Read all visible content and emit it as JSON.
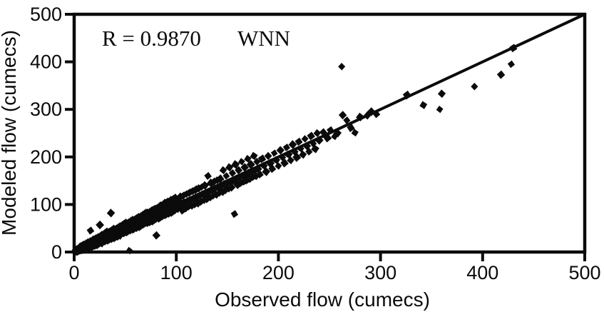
{
  "chart_data": {
    "type": "scatter",
    "title": "",
    "xlabel": "Observed flow (cumecs)",
    "ylabel": "Modeled flow (cumecs)",
    "xlim": [
      0,
      500
    ],
    "ylim": [
      0,
      500
    ],
    "xticks": [
      0,
      100,
      200,
      300,
      400,
      500
    ],
    "yticks": [
      0,
      100,
      200,
      300,
      400,
      500
    ],
    "grid": false,
    "box": true,
    "annotations": {
      "r_text": "R = 0.9870",
      "model_text": "WNN"
    },
    "identity_line": {
      "x": [
        0,
        500
      ],
      "y": [
        0,
        500
      ]
    },
    "marker": "diamond",
    "marker_color": "#0b0b0b",
    "axis_color": "#0b0b0b",
    "points": [
      [
        0.3,
        0.6
      ],
      [
        0.6,
        2
      ],
      [
        0.9,
        0.4
      ],
      [
        1.2,
        1.8
      ],
      [
        1.5,
        4
      ],
      [
        1.8,
        0.9
      ],
      [
        2.1,
        3.2
      ],
      [
        2.4,
        1.2
      ],
      [
        2.7,
        6
      ],
      [
        3,
        2.6
      ],
      [
        3.3,
        5.2
      ],
      [
        3.6,
        1.6
      ],
      [
        3.9,
        8
      ],
      [
        4.2,
        3.2
      ],
      [
        4.5,
        6.8
      ],
      [
        4.8,
        2.2
      ],
      [
        5.1,
        9.5
      ],
      [
        5.4,
        4.2
      ],
      [
        5.7,
        7.4
      ],
      [
        6,
        3.1
      ],
      [
        6.3,
        11
      ],
      [
        6.6,
        5.3
      ],
      [
        6.9,
        8.6
      ],
      [
        7.2,
        3.8
      ],
      [
        7.5,
        13
      ],
      [
        7.8,
        6.2
      ],
      [
        8.1,
        10.4
      ],
      [
        8.4,
        4.8
      ],
      [
        8.7,
        14.5
      ],
      [
        9,
        7.2
      ],
      [
        9.3,
        11.6
      ],
      [
        9.6,
        5.8
      ],
      [
        9.9,
        16
      ],
      [
        10.2,
        8.4
      ],
      [
        10.5,
        12.6
      ],
      [
        10.8,
        7
      ],
      [
        11.1,
        17.5
      ],
      [
        11.4,
        9.6
      ],
      [
        11.7,
        13.8
      ],
      [
        12,
        19
      ],
      [
        12.4,
        10
      ],
      [
        12.8,
        16
      ],
      [
        13.2,
        8.5
      ],
      [
        13.6,
        13.5
      ],
      [
        14,
        20
      ],
      [
        14.4,
        11
      ],
      [
        14.8,
        17
      ],
      [
        15.2,
        9
      ],
      [
        15.6,
        22
      ],
      [
        16,
        45
      ],
      [
        16.4,
        12.5
      ],
      [
        16.8,
        18.5
      ],
      [
        17.2,
        10
      ],
      [
        17.6,
        24
      ],
      [
        18,
        14
      ],
      [
        18.4,
        20
      ],
      [
        18.8,
        11.5
      ],
      [
        19.2,
        26
      ],
      [
        19.6,
        15.5
      ],
      [
        20,
        21.5
      ],
      [
        20.4,
        13
      ],
      [
        20.8,
        28
      ],
      [
        21.2,
        17
      ],
      [
        21.6,
        23
      ],
      [
        22,
        14.5
      ],
      [
        22.4,
        30
      ],
      [
        22.8,
        18.5
      ],
      [
        23.2,
        25
      ],
      [
        23.6,
        16
      ],
      [
        24,
        32
      ],
      [
        24.4,
        20
      ],
      [
        24.8,
        27
      ],
      [
        25.2,
        57
      ],
      [
        25.6,
        34
      ],
      [
        26,
        21.5
      ],
      [
        26.4,
        29
      ],
      [
        26.8,
        19
      ],
      [
        27.2,
        36
      ],
      [
        27.6,
        23
      ],
      [
        28,
        31
      ],
      [
        28.4,
        20.5
      ],
      [
        28.8,
        38
      ],
      [
        29.2,
        25
      ],
      [
        29.6,
        33
      ],
      [
        30,
        22
      ],
      [
        30.5,
        40
      ],
      [
        31,
        27
      ],
      [
        31.5,
        35
      ],
      [
        32,
        24
      ],
      [
        32.5,
        42
      ],
      [
        33,
        29
      ],
      [
        33.5,
        37
      ],
      [
        34,
        25.5
      ],
      [
        34.5,
        44
      ],
      [
        35,
        31
      ],
      [
        35.5,
        39
      ],
      [
        36,
        82
      ],
      [
        36.5,
        27
      ],
      [
        37,
        46
      ],
      [
        37.5,
        33
      ],
      [
        38,
        41
      ],
      [
        38.5,
        29
      ],
      [
        39,
        48
      ],
      [
        39.5,
        35
      ],
      [
        40,
        43
      ],
      [
        40.5,
        31
      ],
      [
        41,
        50
      ],
      [
        41.5,
        37
      ],
      [
        42,
        45
      ],
      [
        42.5,
        33
      ],
      [
        43,
        52
      ],
      [
        43.5,
        39
      ],
      [
        44,
        47
      ],
      [
        44.5,
        35
      ],
      [
        45,
        54
      ],
      [
        45.5,
        41
      ],
      [
        46,
        49
      ],
      [
        46.5,
        37
      ],
      [
        47,
        57
      ],
      [
        47.5,
        43
      ],
      [
        48,
        51
      ],
      [
        48.5,
        39
      ],
      [
        49,
        59
      ],
      [
        49.5,
        45
      ],
      [
        50,
        53
      ],
      [
        50.5,
        41
      ],
      [
        51,
        61
      ],
      [
        51.5,
        47
      ],
      [
        52,
        55
      ],
      [
        52.5,
        43
      ],
      [
        53,
        63
      ],
      [
        53.5,
        49
      ],
      [
        54,
        3
      ],
      [
        54.5,
        57
      ],
      [
        55,
        45
      ],
      [
        55.5,
        65
      ],
      [
        56,
        51
      ],
      [
        56.5,
        59
      ],
      [
        57,
        47
      ],
      [
        57.5,
        67
      ],
      [
        58,
        53
      ],
      [
        58.5,
        61
      ],
      [
        59,
        49
      ],
      [
        59.5,
        70
      ],
      [
        60,
        55
      ],
      [
        60.5,
        63
      ],
      [
        61,
        51
      ],
      [
        61.5,
        72
      ],
      [
        62,
        57
      ],
      [
        62.5,
        65
      ],
      [
        63,
        53
      ],
      [
        63.5,
        74
      ],
      [
        64,
        59
      ],
      [
        64.5,
        67
      ],
      [
        65,
        55
      ],
      [
        65.5,
        76
      ],
      [
        66,
        61
      ],
      [
        66.5,
        69
      ],
      [
        67,
        57
      ],
      [
        67.5,
        78
      ],
      [
        68,
        63
      ],
      [
        68.5,
        71
      ],
      [
        69,
        59
      ],
      [
        69.5,
        80
      ],
      [
        70,
        65
      ],
      [
        70.5,
        82
      ],
      [
        71,
        67
      ],
      [
        71.5,
        75
      ],
      [
        72,
        61
      ],
      [
        72.5,
        84
      ],
      [
        73,
        69
      ],
      [
        73.5,
        77
      ],
      [
        74,
        63
      ],
      [
        74.5,
        86
      ],
      [
        75,
        71
      ],
      [
        75.5,
        79
      ],
      [
        76,
        65
      ],
      [
        76.5,
        88
      ],
      [
        77,
        73
      ],
      [
        77.5,
        81
      ],
      [
        78,
        67
      ],
      [
        78.5,
        91
      ],
      [
        79,
        75
      ],
      [
        79.5,
        83
      ],
      [
        80,
        69
      ],
      [
        80.5,
        35
      ],
      [
        81,
        93
      ],
      [
        81.5,
        77
      ],
      [
        82,
        85
      ],
      [
        82.5,
        71
      ],
      [
        83,
        95
      ],
      [
        83.5,
        79
      ],
      [
        84,
        87
      ],
      [
        84.5,
        73
      ],
      [
        85,
        98
      ],
      [
        85.5,
        81
      ],
      [
        86,
        89
      ],
      [
        86.5,
        75
      ],
      [
        87,
        100
      ],
      [
        87.5,
        83
      ],
      [
        88,
        91
      ],
      [
        88.5,
        77
      ],
      [
        89,
        103
      ],
      [
        89.5,
        85
      ],
      [
        90,
        93
      ],
      [
        90.5,
        79
      ],
      [
        91,
        105
      ],
      [
        91.5,
        87
      ],
      [
        92,
        95
      ],
      [
        92.5,
        81
      ],
      [
        93,
        107
      ],
      [
        93.5,
        89
      ],
      [
        94,
        97
      ],
      [
        94.5,
        83
      ],
      [
        95,
        110
      ],
      [
        95.5,
        91
      ],
      [
        96,
        99
      ],
      [
        96.5,
        85
      ],
      [
        97,
        112
      ],
      [
        97.5,
        93
      ],
      [
        98,
        101
      ],
      [
        98.5,
        87
      ],
      [
        99,
        114
      ],
      [
        99.5,
        95
      ],
      [
        100,
        103
      ],
      [
        101,
        90
      ],
      [
        102,
        108
      ],
      [
        103,
        95
      ],
      [
        104,
        116
      ],
      [
        105,
        100
      ],
      [
        106,
        88
      ],
      [
        107,
        119
      ],
      [
        108,
        104
      ],
      [
        109,
        92
      ],
      [
        110,
        122
      ],
      [
        111,
        107
      ],
      [
        112,
        95
      ],
      [
        113,
        125
      ],
      [
        114,
        110
      ],
      [
        115,
        98
      ],
      [
        116,
        128
      ],
      [
        117,
        112
      ],
      [
        118,
        100
      ],
      [
        119,
        131
      ],
      [
        120,
        115
      ],
      [
        121,
        103
      ],
      [
        122,
        134
      ],
      [
        123,
        118
      ],
      [
        124,
        106
      ],
      [
        125,
        137
      ],
      [
        126,
        121
      ],
      [
        127,
        109
      ],
      [
        128,
        140
      ],
      [
        129,
        124
      ],
      [
        130,
        112
      ],
      [
        131,
        160
      ],
      [
        132,
        127
      ],
      [
        133,
        115
      ],
      [
        134,
        145
      ],
      [
        135,
        130
      ],
      [
        136,
        118
      ],
      [
        137,
        148
      ],
      [
        138,
        133
      ],
      [
        139,
        121
      ],
      [
        140,
        151
      ],
      [
        141,
        136
      ],
      [
        142,
        124
      ],
      [
        143,
        154
      ],
      [
        144,
        139
      ],
      [
        145,
        127
      ],
      [
        146,
        172
      ],
      [
        147,
        142
      ],
      [
        148,
        130
      ],
      [
        149,
        160
      ],
      [
        150,
        145
      ],
      [
        151,
        133
      ],
      [
        152,
        178
      ],
      [
        153,
        148
      ],
      [
        154,
        136
      ],
      [
        155,
        166
      ],
      [
        156,
        151
      ],
      [
        157,
        80
      ],
      [
        158,
        184
      ],
      [
        159,
        154
      ],
      [
        160,
        142
      ],
      [
        161,
        172
      ],
      [
        162,
        157
      ],
      [
        163,
        145
      ],
      [
        164,
        190
      ],
      [
        165,
        160
      ],
      [
        166,
        148
      ],
      [
        167,
        178
      ],
      [
        168,
        163
      ],
      [
        169,
        151
      ],
      [
        170,
        196
      ],
      [
        171,
        166
      ],
      [
        172,
        154
      ],
      [
        173,
        184
      ],
      [
        174,
        169
      ],
      [
        175,
        157
      ],
      [
        176,
        202
      ],
      [
        177,
        172
      ],
      [
        178,
        160
      ],
      [
        179,
        190
      ],
      [
        180,
        175
      ],
      [
        182,
        163
      ],
      [
        184,
        196
      ],
      [
        186,
        181
      ],
      [
        188,
        169
      ],
      [
        190,
        202
      ],
      [
        192,
        187
      ],
      [
        194,
        175
      ],
      [
        196,
        208
      ],
      [
        198,
        193
      ],
      [
        200,
        181
      ],
      [
        202,
        214
      ],
      [
        204,
        199
      ],
      [
        206,
        187
      ],
      [
        208,
        220
      ],
      [
        210,
        205
      ],
      [
        212,
        193
      ],
      [
        214,
        226
      ],
      [
        216,
        211
      ],
      [
        218,
        199
      ],
      [
        220,
        232
      ],
      [
        222,
        217
      ],
      [
        224,
        205
      ],
      [
        226,
        238
      ],
      [
        228,
        223
      ],
      [
        230,
        211
      ],
      [
        232,
        244
      ],
      [
        234,
        229
      ],
      [
        236,
        217
      ],
      [
        238,
        250
      ],
      [
        240,
        235
      ],
      [
        244,
        252
      ],
      [
        248,
        240
      ],
      [
        251,
        256
      ],
      [
        255,
        243
      ],
      [
        258,
        250
      ],
      [
        262,
        390
      ],
      [
        263,
        288
      ],
      [
        267,
        277
      ],
      [
        271,
        261
      ],
      [
        275,
        251
      ],
      [
        280,
        284
      ],
      [
        287,
        287
      ],
      [
        291,
        295
      ],
      [
        296,
        290
      ],
      [
        326,
        330
      ],
      [
        342,
        309
      ],
      [
        358,
        300
      ],
      [
        360,
        333
      ],
      [
        392,
        348
      ],
      [
        418,
        373
      ],
      [
        428,
        395
      ],
      [
        430,
        429
      ]
    ]
  }
}
